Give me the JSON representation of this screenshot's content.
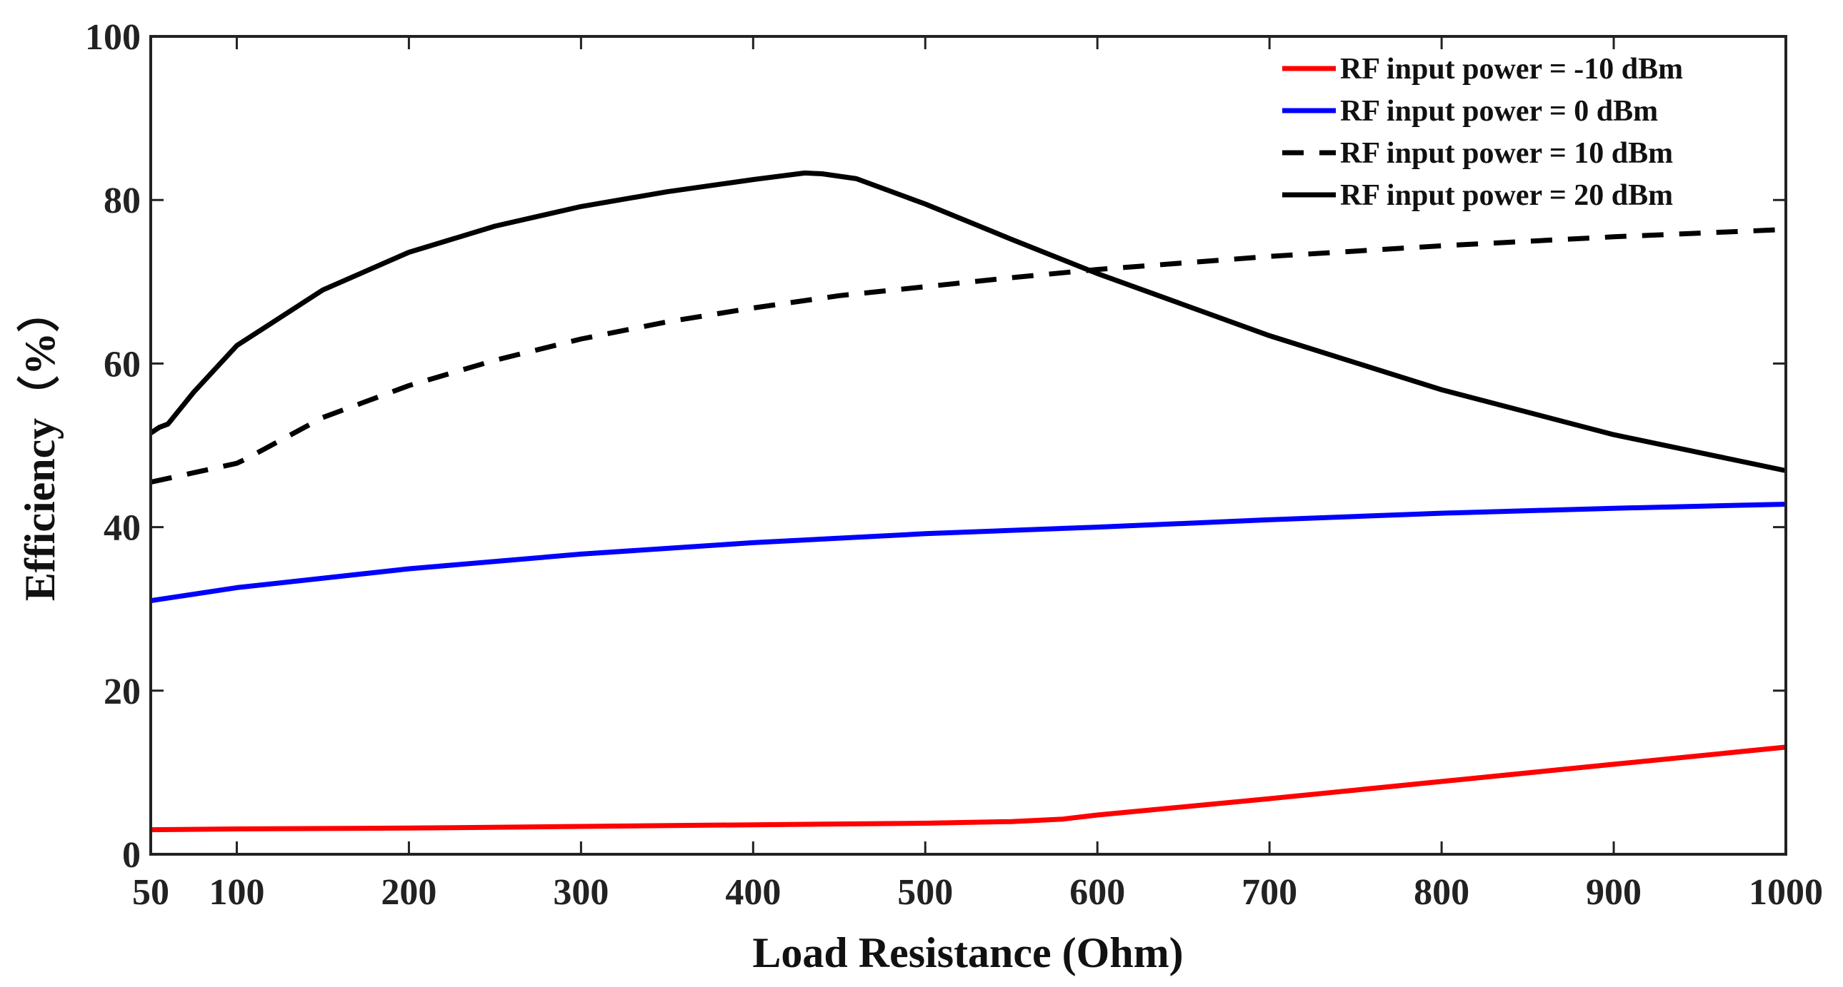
{
  "chart_data": {
    "type": "line",
    "title": "",
    "xlabel": "Load Resistance (Ohm)",
    "ylabel": "Efficiency（%）",
    "xlim": [
      50,
      1000
    ],
    "ylim": [
      0,
      100
    ],
    "x_ticks": [
      50,
      100,
      200,
      300,
      400,
      500,
      600,
      700,
      800,
      900,
      1000
    ],
    "y_ticks": [
      0,
      20,
      40,
      60,
      80,
      100
    ],
    "grid": false,
    "legend_position": "top-right",
    "series": [
      {
        "name": "RF input power = -10 dBm",
        "color": "#ff0000",
        "dash": "solid",
        "x": [
          50,
          100,
          200,
          300,
          400,
          500,
          550,
          580,
          600,
          700,
          800,
          900,
          1000
        ],
        "y": [
          3.0,
          3.1,
          3.2,
          3.4,
          3.6,
          3.8,
          4.0,
          4.3,
          4.8,
          6.8,
          8.9,
          11.0,
          13.1
        ]
      },
      {
        "name": "RF input power = 0 dBm",
        "color": "#0000ff",
        "dash": "solid",
        "x": [
          50,
          100,
          200,
          300,
          400,
          500,
          600,
          700,
          800,
          900,
          1000
        ],
        "y": [
          31.0,
          32.6,
          34.9,
          36.7,
          38.1,
          39.2,
          40.0,
          40.9,
          41.7,
          42.3,
          42.8
        ]
      },
      {
        "name": "RF input power = 10 dBm",
        "color": "#000000",
        "dash": "dashed",
        "x": [
          50,
          100,
          105,
          150,
          200,
          250,
          300,
          350,
          400,
          450,
          500,
          550,
          600,
          700,
          800,
          900,
          1000
        ],
        "y": [
          45.5,
          47.8,
          48.3,
          53.4,
          57.3,
          60.4,
          63.0,
          65.1,
          66.8,
          68.3,
          69.4,
          70.5,
          71.5,
          73.1,
          74.4,
          75.5,
          76.4
        ]
      },
      {
        "name": "RF input power = 20 dBm",
        "color": "#000000",
        "dash": "solid",
        "x": [
          50,
          55,
          60,
          75,
          100,
          150,
          200,
          250,
          300,
          350,
          400,
          430,
          440,
          460,
          500,
          550,
          600,
          700,
          800,
          900,
          1000
        ],
        "y": [
          51.5,
          52.2,
          52.6,
          56.5,
          62.2,
          69.0,
          73.6,
          76.8,
          79.2,
          81.0,
          82.5,
          83.3,
          83.2,
          82.6,
          79.5,
          75.2,
          71.0,
          63.4,
          56.8,
          51.3,
          46.9
        ]
      }
    ]
  }
}
